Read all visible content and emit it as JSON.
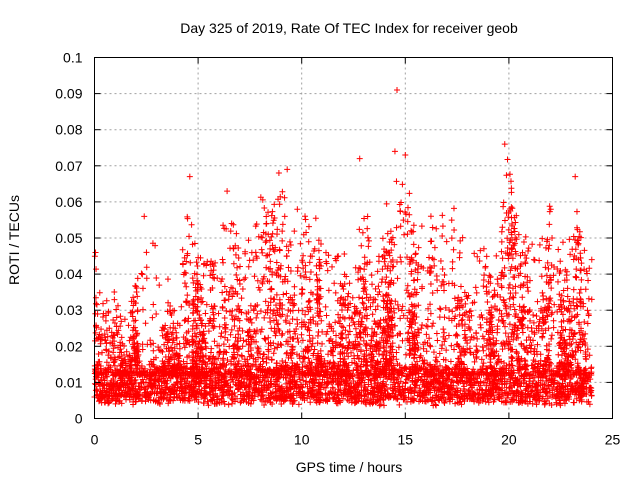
{
  "chart_data": {
    "type": "scatter",
    "title": "Day 325 of 2019, Rate Of TEC Index for receiver geob",
    "xlabel": "GPS time / hours",
    "ylabel": "ROTI / TECUs",
    "xlim": [
      0,
      25
    ],
    "ylim": [
      0,
      0.1
    ],
    "xticks": [
      0,
      5,
      10,
      15,
      20,
      25
    ],
    "xtick_labels": [
      "0",
      "5",
      "10",
      "15",
      "20",
      "25"
    ],
    "yticks": [
      0,
      0.01,
      0.02,
      0.03,
      0.04,
      0.05,
      0.06,
      0.07,
      0.08,
      0.09,
      0.1
    ],
    "ytick_labels": [
      "0",
      "0.01",
      "0.02",
      "0.03",
      "0.04",
      "0.05",
      "0.06",
      "0.07",
      "0.08",
      "0.09",
      "0.1"
    ],
    "grid": true,
    "marker": "+",
    "color": "#ff0000",
    "data_range": [
      0.0,
      24.0
    ],
    "baseline_band": [
      0.005,
      0.014
    ],
    "highlighted_points": [
      {
        "x": 0.05,
        "y": 0.046
      },
      {
        "x": 2.4,
        "y": 0.056
      },
      {
        "x": 4.6,
        "y": 0.067
      },
      {
        "x": 6.4,
        "y": 0.063
      },
      {
        "x": 8.9,
        "y": 0.068
      },
      {
        "x": 9.3,
        "y": 0.069
      },
      {
        "x": 12.8,
        "y": 0.072
      },
      {
        "x": 14.5,
        "y": 0.074
      },
      {
        "x": 14.6,
        "y": 0.091
      },
      {
        "x": 15.0,
        "y": 0.073
      },
      {
        "x": 19.8,
        "y": 0.076
      },
      {
        "x": 23.2,
        "y": 0.067
      },
      {
        "x": 24.0,
        "y": 0.044
      },
      {
        "x": 24.0,
        "y": 0.033
      }
    ],
    "activity_profile": [
      {
        "x": 0.0,
        "peak": 0.046
      },
      {
        "x": 0.5,
        "peak": 0.032
      },
      {
        "x": 1.0,
        "peak": 0.036
      },
      {
        "x": 1.5,
        "peak": 0.028
      },
      {
        "x": 2.0,
        "peak": 0.038
      },
      {
        "x": 2.5,
        "peak": 0.048
      },
      {
        "x": 3.0,
        "peak": 0.049
      },
      {
        "x": 3.5,
        "peak": 0.041
      },
      {
        "x": 4.0,
        "peak": 0.026
      },
      {
        "x": 4.5,
        "peak": 0.067
      },
      {
        "x": 5.0,
        "peak": 0.045
      },
      {
        "x": 5.5,
        "peak": 0.046
      },
      {
        "x": 6.0,
        "peak": 0.047
      },
      {
        "x": 6.5,
        "peak": 0.063
      },
      {
        "x": 7.0,
        "peak": 0.048
      },
      {
        "x": 7.5,
        "peak": 0.05
      },
      {
        "x": 8.0,
        "peak": 0.064
      },
      {
        "x": 8.5,
        "peak": 0.061
      },
      {
        "x": 9.0,
        "peak": 0.069
      },
      {
        "x": 9.5,
        "peak": 0.048
      },
      {
        "x": 10.0,
        "peak": 0.068
      },
      {
        "x": 10.5,
        "peak": 0.064
      },
      {
        "x": 11.0,
        "peak": 0.048
      },
      {
        "x": 11.5,
        "peak": 0.045
      },
      {
        "x": 12.0,
        "peak": 0.048
      },
      {
        "x": 12.5,
        "peak": 0.034
      },
      {
        "x": 13.0,
        "peak": 0.072
      },
      {
        "x": 13.5,
        "peak": 0.035
      },
      {
        "x": 14.0,
        "peak": 0.057
      },
      {
        "x": 14.5,
        "peak": 0.074
      },
      {
        "x": 15.0,
        "peak": 0.073
      },
      {
        "x": 15.5,
        "peak": 0.05
      },
      {
        "x": 16.0,
        "peak": 0.063
      },
      {
        "x": 16.5,
        "peak": 0.053
      },
      {
        "x": 17.0,
        "peak": 0.06
      },
      {
        "x": 17.5,
        "peak": 0.058
      },
      {
        "x": 18.0,
        "peak": 0.045
      },
      {
        "x": 18.5,
        "peak": 0.05
      },
      {
        "x": 19.0,
        "peak": 0.053
      },
      {
        "x": 19.5,
        "peak": 0.045
      },
      {
        "x": 20.0,
        "peak": 0.076
      },
      {
        "x": 20.5,
        "peak": 0.058
      },
      {
        "x": 21.0,
        "peak": 0.051
      },
      {
        "x": 21.5,
        "peak": 0.05
      },
      {
        "x": 22.0,
        "peak": 0.062
      },
      {
        "x": 22.5,
        "peak": 0.05
      },
      {
        "x": 23.0,
        "peak": 0.054
      },
      {
        "x": 23.5,
        "peak": 0.067
      },
      {
        "x": 24.0,
        "peak": 0.044
      }
    ]
  }
}
